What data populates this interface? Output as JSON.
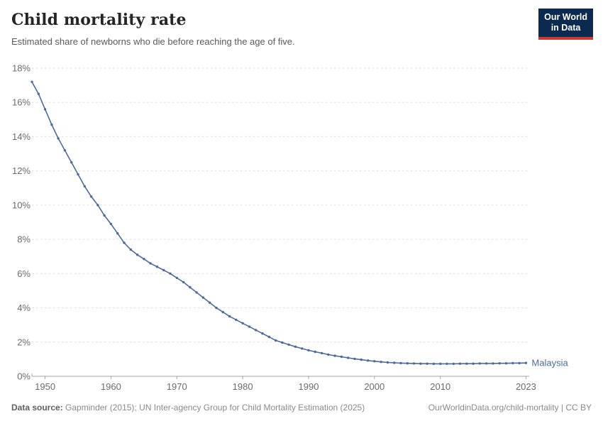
{
  "header": {
    "title": "Child mortality rate",
    "subtitle": "Estimated share of newborns who die before reaching the age of five."
  },
  "logo": {
    "line1": "Our World",
    "line2": "in Data",
    "bg_color": "#0c2a50",
    "accent_color": "#ce3a2f"
  },
  "chart_data": {
    "type": "line",
    "title": "Child mortality rate",
    "subtitle": "Estimated share of newborns who die before reaching the age of five.",
    "xlabel": "",
    "ylabel": "",
    "xlim": [
      1948,
      2023
    ],
    "ylim": [
      0,
      18
    ],
    "xticks": [
      1950,
      1960,
      1970,
      1980,
      1990,
      2000,
      2010,
      2023
    ],
    "yticks": [
      0,
      2,
      4,
      6,
      8,
      10,
      12,
      14,
      16,
      18
    ],
    "ytick_suffix": "%",
    "grid": "horizontal-dashed",
    "legend_position": "end-of-line-label",
    "x": [
      1948,
      1949,
      1950,
      1951,
      1952,
      1953,
      1954,
      1955,
      1956,
      1957,
      1958,
      1959,
      1960,
      1961,
      1962,
      1963,
      1964,
      1965,
      1966,
      1967,
      1968,
      1969,
      1970,
      1971,
      1972,
      1973,
      1974,
      1975,
      1976,
      1977,
      1978,
      1979,
      1980,
      1981,
      1982,
      1983,
      1984,
      1985,
      1986,
      1987,
      1988,
      1989,
      1990,
      1991,
      1992,
      1993,
      1994,
      1995,
      1996,
      1997,
      1998,
      1999,
      2000,
      2001,
      2002,
      2003,
      2004,
      2005,
      2006,
      2007,
      2008,
      2009,
      2010,
      2011,
      2012,
      2013,
      2014,
      2015,
      2016,
      2017,
      2018,
      2019,
      2020,
      2021,
      2022,
      2023
    ],
    "series": [
      {
        "name": "Malaysia",
        "color": "#4c6a9c",
        "values": [
          17.2,
          16.5,
          15.6,
          14.7,
          13.9,
          13.2,
          12.5,
          11.8,
          11.1,
          10.5,
          10.0,
          9.4,
          8.9,
          8.35,
          7.8,
          7.4,
          7.1,
          6.85,
          6.6,
          6.4,
          6.2,
          6.0,
          5.75,
          5.5,
          5.2,
          4.9,
          4.6,
          4.3,
          4.0,
          3.75,
          3.5,
          3.3,
          3.1,
          2.9,
          2.7,
          2.5,
          2.3,
          2.1,
          1.97,
          1.85,
          1.73,
          1.62,
          1.52,
          1.43,
          1.35,
          1.27,
          1.2,
          1.14,
          1.08,
          1.02,
          0.97,
          0.92,
          0.88,
          0.84,
          0.81,
          0.79,
          0.77,
          0.76,
          0.75,
          0.74,
          0.74,
          0.73,
          0.73,
          0.73,
          0.73,
          0.74,
          0.74,
          0.74,
          0.75,
          0.75,
          0.75,
          0.76,
          0.76,
          0.77,
          0.77,
          0.78
        ]
      }
    ]
  },
  "footer": {
    "source_label": "Data source:",
    "source_text": "Gapminder (2015); UN Inter-agency Group for Child Mortality Estimation (2025)",
    "link_text": "OurWorldinData.org/child-mortality | CC BY"
  },
  "colors": {
    "line": "#4c6a9c",
    "grid": "#dcdcdc",
    "axis": "#a3a3a3",
    "tick_label": "#6b6b6b"
  }
}
